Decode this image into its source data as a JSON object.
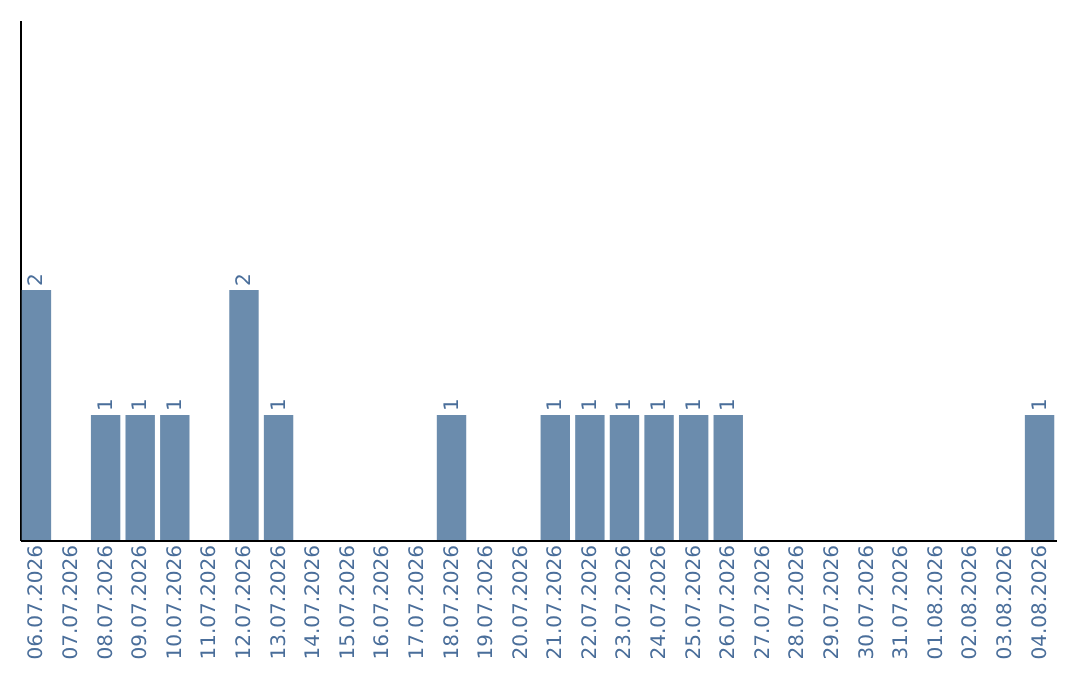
{
  "chart_data": {
    "type": "bar",
    "categories": [
      "06.07.2026",
      "07.07.2026",
      "08.07.2026",
      "09.07.2026",
      "10.07.2026",
      "11.07.2026",
      "12.07.2026",
      "13.07.2026",
      "14.07.2026",
      "15.07.2026",
      "16.07.2026",
      "17.07.2026",
      "18.07.2026",
      "19.07.2026",
      "20.07.2026",
      "21.07.2026",
      "22.07.2026",
      "23.07.2026",
      "24.07.2026",
      "25.07.2026",
      "26.07.2026",
      "27.07.2026",
      "28.07.2026",
      "29.07.2026",
      "30.07.2026",
      "31.07.2026",
      "01.08.2026",
      "02.08.2026",
      "03.08.2026",
      "04.08.2026"
    ],
    "values": [
      2,
      0,
      1,
      1,
      1,
      0,
      2,
      1,
      0,
      0,
      0,
      0,
      1,
      0,
      0,
      1,
      1,
      1,
      1,
      1,
      1,
      0,
      0,
      0,
      0,
      0,
      0,
      0,
      0,
      1
    ],
    "value_labels": [
      "2",
      null,
      "1",
      "1",
      "1",
      null,
      "2",
      "1",
      null,
      null,
      null,
      null,
      "1",
      null,
      null,
      "1",
      "1",
      "1",
      "1",
      "1",
      "1",
      null,
      null,
      null,
      null,
      null,
      null,
      null,
      null,
      "1"
    ],
    "color": "#6b8cad",
    "ylim": [
      0,
      4.16
    ],
    "tick_labels": "x",
    "grid": false
  }
}
